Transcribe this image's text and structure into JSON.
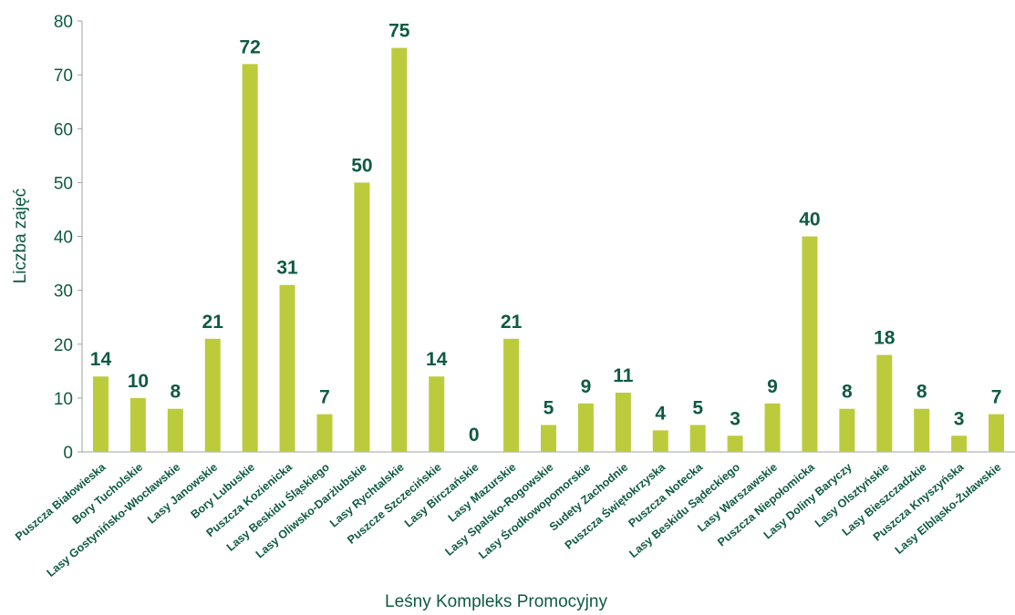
{
  "chart_data": {
    "type": "bar",
    "xlabel": "Leśny Kompleks Promocyjny",
    "ylabel": "Liczba zajęć",
    "ylim": [
      0,
      80
    ],
    "yticks": [
      0,
      10,
      20,
      30,
      40,
      50,
      60,
      70,
      80
    ],
    "grid": false,
    "colors": {
      "bar": "#bccb3c",
      "text": "#0f5a44",
      "axis": "#9aa4a0"
    },
    "categories": [
      "Puszcza Białowieska",
      "Bory Tucholskie",
      "Lasy Gostynińsko-Włocławskie",
      "Lasy Janowskie",
      "Bory Lubuskie",
      "Puszcza Kozienicka",
      "Lasy Beskidu Śląskiego",
      "Lasy Oliwsko-Darżlubskie",
      "Lasy Rychtalskie",
      "Puszcze Szczecińskie",
      "Lasy Birczańskie",
      "Lasy Mazurskie",
      "Lasy Spalsko-Rogowskie",
      "Lasy Środkowopomorskie",
      "Sudety Zachodnie",
      "Puszcza Świętokrzyska",
      "Puszcza Notecka",
      "Lasy Beskidu Sądeckiego",
      "Lasy Warszawskie",
      "Puszcza Niepołomicka",
      "Lasy Doliny Baryczy",
      "Lasy Olsztyńskie",
      "Lasy Bieszczadzkie",
      "Puszcza Knyszyńska",
      "Lasy Elbląsko-Żuławskie"
    ],
    "values": [
      14,
      10,
      8,
      21,
      72,
      31,
      7,
      50,
      75,
      14,
      0,
      21,
      5,
      9,
      11,
      4,
      5,
      3,
      9,
      40,
      8,
      18,
      8,
      3,
      7
    ]
  }
}
